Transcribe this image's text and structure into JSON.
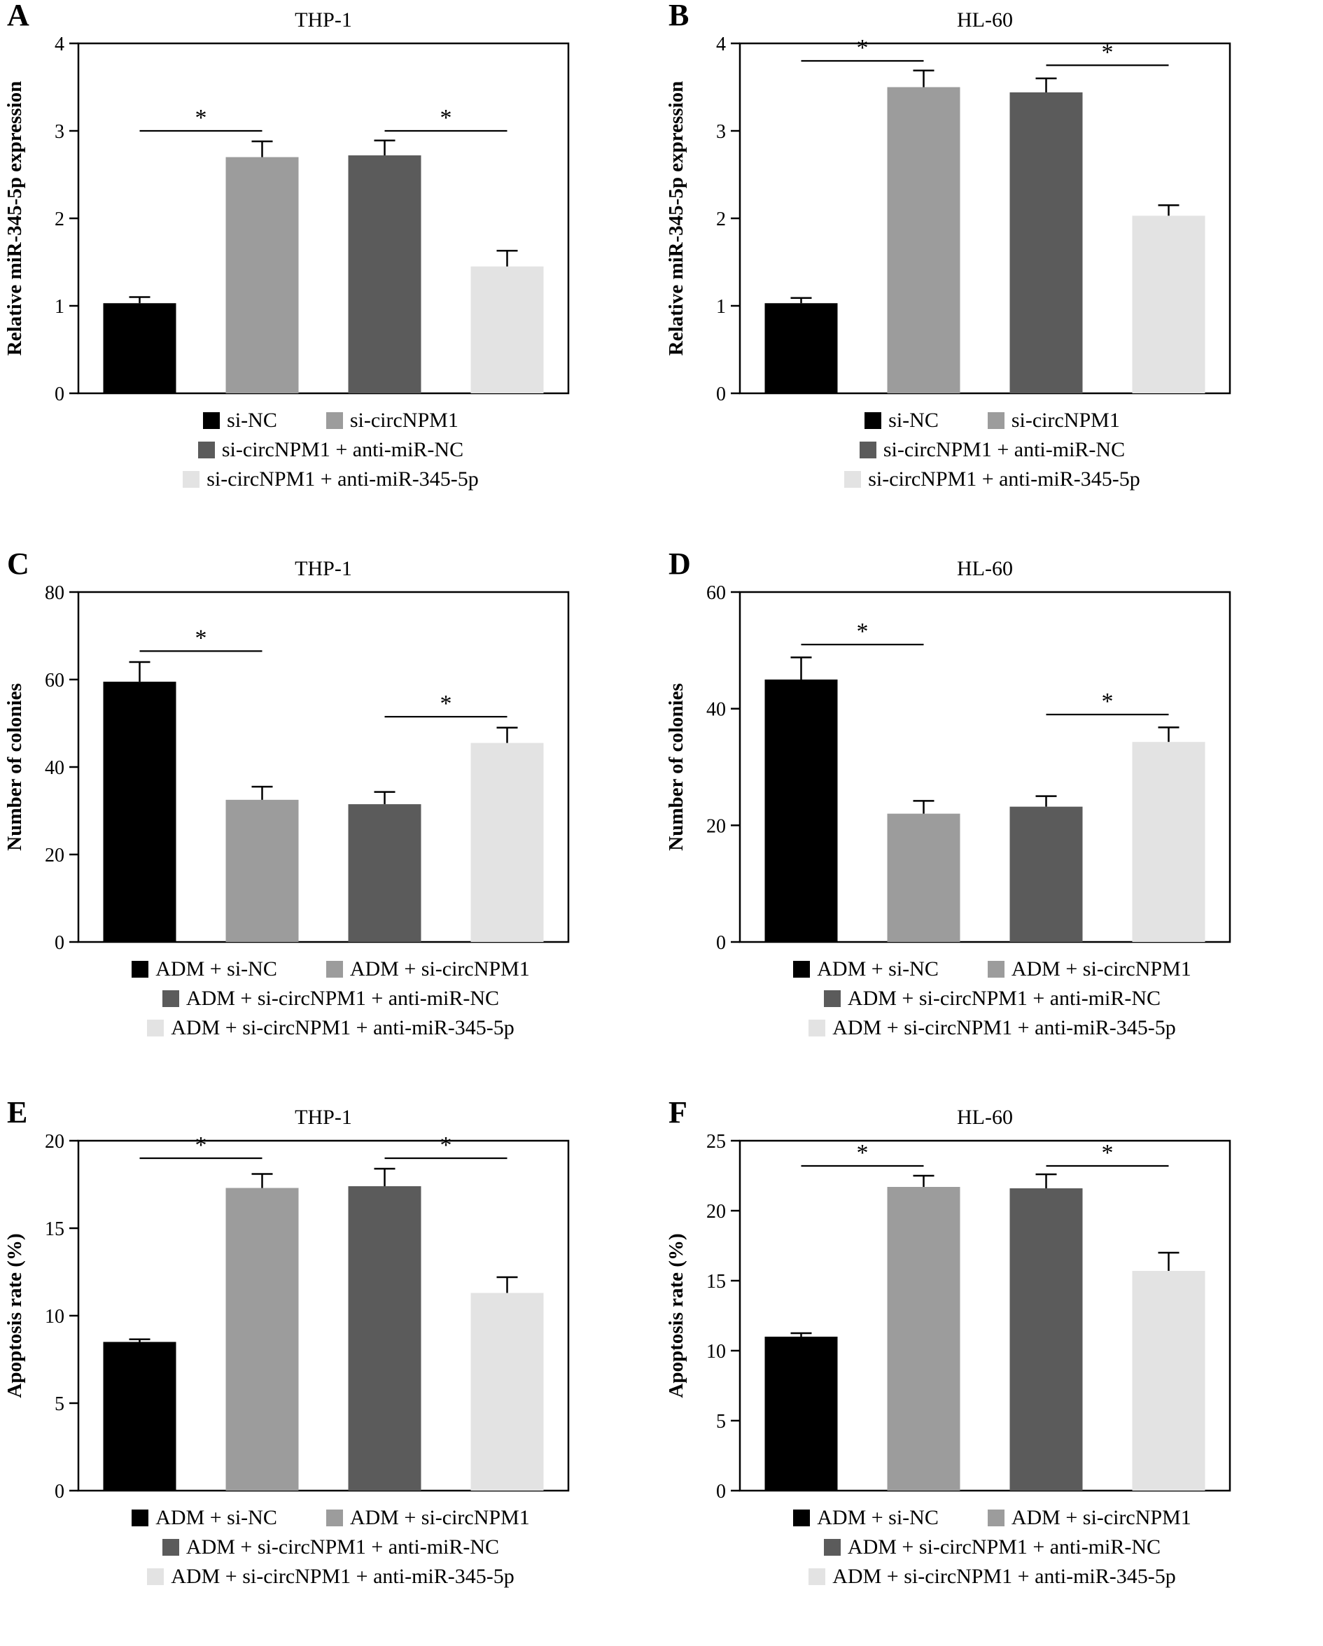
{
  "figure": {
    "background": "#ffffff"
  },
  "style": {
    "bar_colors": [
      "#000000",
      "#9c9c9c",
      "#5b5b5b",
      "#e3e3e3"
    ],
    "axis_color": "#000000"
  },
  "chart_data": [
    {
      "type": "bar",
      "panel": "A",
      "title": "THP-1",
      "ylabel": "Relative miR-345-5p expression",
      "ylim": [
        0,
        4
      ],
      "yticks": [
        0,
        1,
        2,
        3,
        4
      ],
      "categories": [
        "si-NC",
        "si-circNPM1",
        "si-circNPM1 + anti-miR-NC",
        "si-circNPM1 + anti-miR-345-5p"
      ],
      "values": [
        1.03,
        2.7,
        2.72,
        1.45
      ],
      "errors": [
        0.07,
        0.18,
        0.17,
        0.18
      ],
      "significance": [
        {
          "from": 0,
          "to": 1,
          "y": 3.0,
          "label": "*"
        },
        {
          "from": 2,
          "to": 3,
          "y": 3.0,
          "label": "*"
        }
      ]
    },
    {
      "type": "bar",
      "panel": "B",
      "title": "HL-60",
      "ylabel": "Relative miR-345-5p expression",
      "ylim": [
        0,
        4
      ],
      "yticks": [
        0,
        1,
        2,
        3,
        4
      ],
      "categories": [
        "si-NC",
        "si-circNPM1",
        "si-circNPM1 + anti-miR-NC",
        "si-circNPM1 + anti-miR-345-5p"
      ],
      "values": [
        1.03,
        3.5,
        3.44,
        2.03
      ],
      "errors": [
        0.06,
        0.19,
        0.16,
        0.12
      ],
      "significance": [
        {
          "from": 0,
          "to": 1,
          "y": 3.8,
          "label": "*"
        },
        {
          "from": 2,
          "to": 3,
          "y": 3.75,
          "label": "*"
        }
      ]
    },
    {
      "type": "bar",
      "panel": "C",
      "title": "THP-1",
      "ylabel": "Number of colonies",
      "ylim": [
        0,
        80
      ],
      "yticks": [
        0,
        20,
        40,
        60,
        80
      ],
      "categories": [
        "ADM + si-NC",
        "ADM + si-circNPM1",
        "ADM + si-circNPM1 + anti-miR-NC",
        "ADM + si-circNPM1 + anti-miR-345-5p"
      ],
      "values": [
        59.5,
        32.5,
        31.5,
        45.5
      ],
      "errors": [
        4.5,
        3.0,
        2.8,
        3.5
      ],
      "significance": [
        {
          "from": 0,
          "to": 1,
          "y": 66.5,
          "label": "*"
        },
        {
          "from": 2,
          "to": 3,
          "y": 51.5,
          "label": "*"
        }
      ]
    },
    {
      "type": "bar",
      "panel": "D",
      "title": "HL-60",
      "ylabel": "Number of colonies",
      "ylim": [
        0,
        60
      ],
      "yticks": [
        0,
        20,
        40,
        60
      ],
      "categories": [
        "ADM + si-NC",
        "ADM + si-circNPM1",
        "ADM + si-circNPM1 + anti-miR-NC",
        "ADM + si-circNPM1 + anti-miR-345-5p"
      ],
      "values": [
        45,
        22,
        23.2,
        34.3
      ],
      "errors": [
        3.8,
        2.2,
        1.8,
        2.5
      ],
      "significance": [
        {
          "from": 0,
          "to": 1,
          "y": 51,
          "label": "*"
        },
        {
          "from": 2,
          "to": 3,
          "y": 39,
          "label": "*"
        }
      ]
    },
    {
      "type": "bar",
      "panel": "E",
      "title": "THP-1",
      "ylabel": "Apoptosis rate (%)",
      "ylim": [
        0,
        20
      ],
      "yticks": [
        0,
        5,
        10,
        15,
        20
      ],
      "categories": [
        "ADM + si-NC",
        "ADM + si-circNPM1",
        "ADM + si-circNPM1 + anti-miR-NC",
        "ADM + si-circNPM1 + anti-miR-345-5p"
      ],
      "values": [
        8.5,
        17.3,
        17.4,
        11.3
      ],
      "errors": [
        0.15,
        0.8,
        1.0,
        0.9
      ],
      "significance": [
        {
          "from": 0,
          "to": 1,
          "y": 19.0,
          "label": "*"
        },
        {
          "from": 2,
          "to": 3,
          "y": 19.0,
          "label": "*"
        }
      ]
    },
    {
      "type": "bar",
      "panel": "F",
      "title": "HL-60",
      "ylabel": "Apoptosis rate (%)",
      "ylim": [
        0,
        25
      ],
      "yticks": [
        0,
        5,
        10,
        15,
        20,
        25
      ],
      "categories": [
        "ADM + si-NC",
        "ADM + si-circNPM1",
        "ADM + si-circNPM1 + anti-miR-NC",
        "ADM + si-circNPM1 + anti-miR-345-5p"
      ],
      "values": [
        11,
        21.7,
        21.6,
        15.7
      ],
      "errors": [
        0.25,
        0.8,
        1.0,
        1.3
      ],
      "significance": [
        {
          "from": 0,
          "to": 1,
          "y": 23.2,
          "label": "*"
        },
        {
          "from": 2,
          "to": 3,
          "y": 23.2,
          "label": "*"
        }
      ]
    }
  ]
}
